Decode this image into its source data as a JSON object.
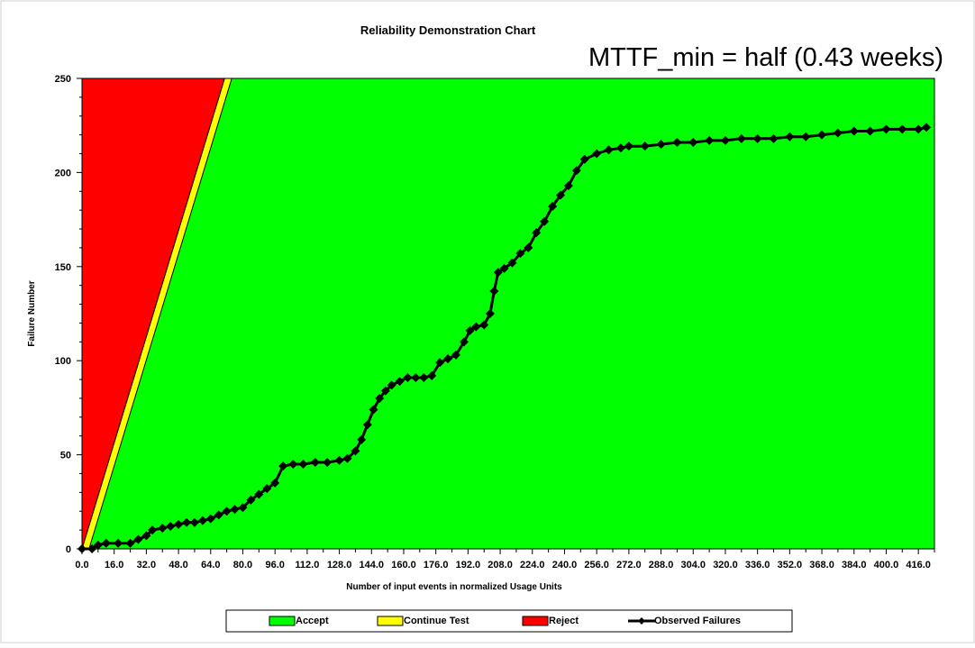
{
  "chart_data": {
    "type": "area",
    "title": "Reliability Demonstration Chart",
    "annotation": "MTTF_min = half (0.43 weeks)",
    "xlabel": "Number of input events in normalized Usage Units",
    "ylabel": "Failure Number",
    "xlim": [
      0,
      424
    ],
    "ylim": [
      0,
      250
    ],
    "yticks": [
      0,
      50,
      100,
      150,
      200,
      250
    ],
    "xticks": [
      "0.0",
      "16.0",
      "32.0",
      "48.0",
      "64.0",
      "80.0",
      "96.0",
      "112.0",
      "128.0",
      "144.0",
      "160.0",
      "176.0",
      "192.0",
      "208.0",
      "224.0",
      "240.0",
      "256.0",
      "272.0",
      "288.0",
      "304.0",
      "320.0",
      "336.0",
      "352.0",
      "368.0",
      "384.0",
      "400.0",
      "416.0"
    ],
    "grid": false,
    "legend_position": "bottom",
    "regions": [
      {
        "name": "Accept",
        "color": "#00ff00"
      },
      {
        "name": "Continue Test",
        "color": "#ffff00"
      },
      {
        "name": "Reject",
        "color": "#ff0000"
      }
    ],
    "boundaries": {
      "reject_line": [
        [
          0,
          0
        ],
        [
          70.9,
          250
        ]
      ],
      "accept_line": [
        [
          3.5,
          0
        ],
        [
          74.5,
          250
        ]
      ]
    },
    "series": [
      {
        "name": "Observed Failures",
        "color": "#000000",
        "marker": "diamond",
        "points": [
          [
            0,
            0
          ],
          [
            5,
            0
          ],
          [
            8,
            2
          ],
          [
            12,
            3
          ],
          [
            18,
            3
          ],
          [
            24,
            3
          ],
          [
            28,
            5
          ],
          [
            32,
            7
          ],
          [
            35,
            10
          ],
          [
            40,
            11
          ],
          [
            44,
            12
          ],
          [
            48,
            13
          ],
          [
            52,
            14
          ],
          [
            56,
            14
          ],
          [
            60,
            15
          ],
          [
            64,
            16
          ],
          [
            68,
            18
          ],
          [
            72,
            20
          ],
          [
            76,
            21
          ],
          [
            80,
            22
          ],
          [
            84,
            26
          ],
          [
            88,
            29
          ],
          [
            92,
            32
          ],
          [
            96,
            35
          ],
          [
            100,
            44
          ],
          [
            105,
            45
          ],
          [
            110,
            45
          ],
          [
            116,
            46
          ],
          [
            122,
            46
          ],
          [
            128,
            47
          ],
          [
            132,
            48
          ],
          [
            136,
            52
          ],
          [
            139,
            58
          ],
          [
            142,
            66
          ],
          [
            145,
            74
          ],
          [
            148,
            80
          ],
          [
            151,
            84
          ],
          [
            154,
            87
          ],
          [
            158,
            89
          ],
          [
            162,
            91
          ],
          [
            166,
            91
          ],
          [
            170,
            91
          ],
          [
            174,
            92
          ],
          [
            178,
            99
          ],
          [
            182,
            101
          ],
          [
            186,
            103
          ],
          [
            190,
            110
          ],
          [
            193,
            116
          ],
          [
            196,
            118
          ],
          [
            200,
            119
          ],
          [
            203,
            125
          ],
          [
            205,
            137
          ],
          [
            207,
            147
          ],
          [
            210,
            149
          ],
          [
            214,
            152
          ],
          [
            218,
            157
          ],
          [
            222,
            160
          ],
          [
            226,
            168
          ],
          [
            230,
            174
          ],
          [
            234,
            182
          ],
          [
            238,
            188
          ],
          [
            242,
            193
          ],
          [
            246,
            201
          ],
          [
            250,
            207
          ],
          [
            256,
            210
          ],
          [
            262,
            212
          ],
          [
            268,
            213
          ],
          [
            272,
            214
          ],
          [
            280,
            214
          ],
          [
            288,
            215
          ],
          [
            296,
            216
          ],
          [
            304,
            216
          ],
          [
            312,
            217
          ],
          [
            320,
            217
          ],
          [
            328,
            218
          ],
          [
            336,
            218
          ],
          [
            344,
            218
          ],
          [
            352,
            219
          ],
          [
            360,
            219
          ],
          [
            368,
            220
          ],
          [
            376,
            221
          ],
          [
            384,
            222
          ],
          [
            392,
            222
          ],
          [
            400,
            223
          ],
          [
            408,
            223
          ],
          [
            416,
            223
          ],
          [
            420,
            224
          ]
        ]
      }
    ]
  }
}
